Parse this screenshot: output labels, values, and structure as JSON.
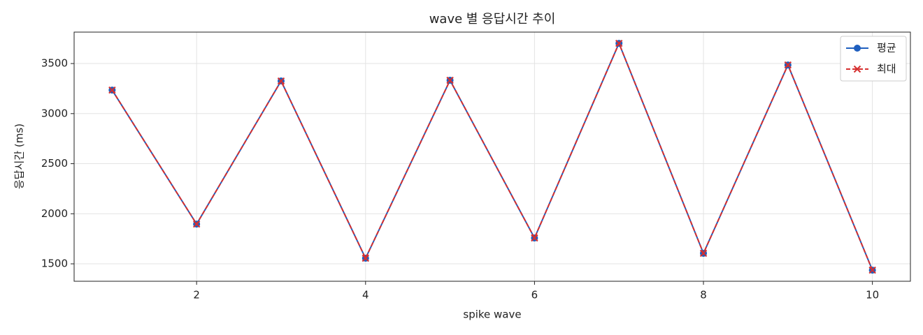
{
  "chart_data": {
    "type": "line",
    "title": "wave 별 응답시간 추이",
    "x_label": "spike wave",
    "y_label": "응답시간 (ms)",
    "x": [
      1,
      2,
      3,
      4,
      5,
      6,
      7,
      8,
      9,
      10
    ],
    "series": [
      {
        "name": "평균",
        "color": "#1f5fbf",
        "marker": "circle",
        "linestyle": "solid",
        "values": [
          3235,
          1897,
          3326,
          1556,
          3333,
          1758,
          3702,
          1605,
          3486,
          1437
        ]
      },
      {
        "name": "최대",
        "color": "#d62f2f",
        "marker": "x",
        "linestyle": "dashed",
        "values": [
          3235,
          1897,
          3326,
          1556,
          3333,
          1758,
          3702,
          1605,
          3486,
          1437
        ]
      }
    ],
    "xlim": [
      0.55,
      10.45
    ],
    "ylim": [
      1326,
      3814
    ],
    "xticks": [
      2,
      4,
      6,
      8,
      10
    ],
    "yticks": [
      1500,
      2000,
      2500,
      3000,
      3500
    ],
    "grid": true,
    "legend": "upper right"
  }
}
